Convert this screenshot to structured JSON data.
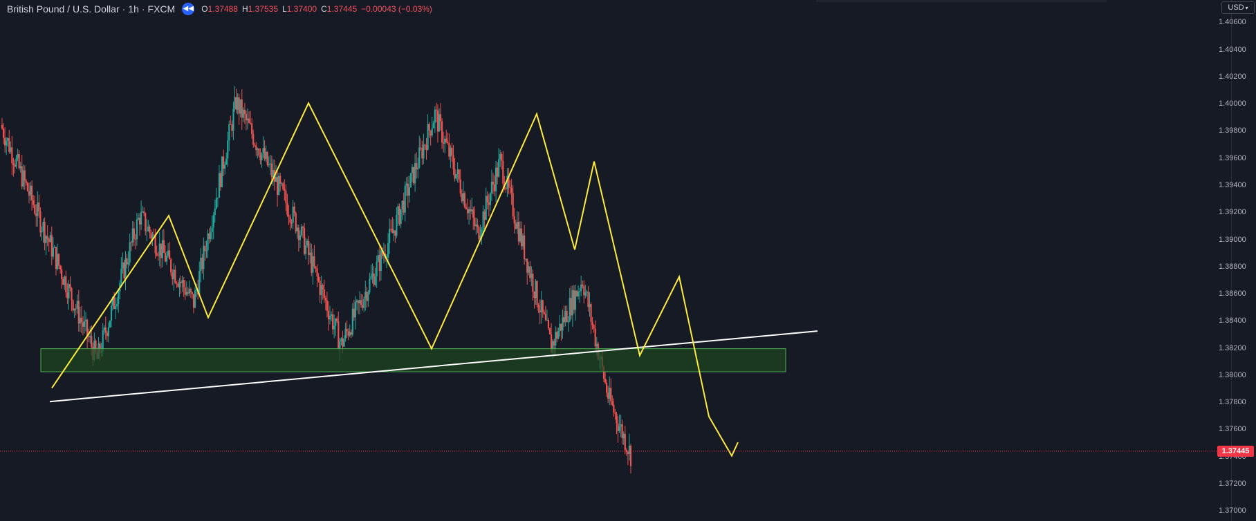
{
  "header": {
    "symbol": "British Pound / U.S. Dollar",
    "interval": "1h",
    "exchange": "FXCM",
    "open_label": "O",
    "open": "1.37488",
    "high_label": "H",
    "high": "1.37535",
    "low_label": "L",
    "low": "1.37400",
    "close_label": "C",
    "close": "1.37445",
    "change": "−0.00043 (−0.03%)"
  },
  "currency_button": "USD",
  "last_price_tag": "1.37445",
  "colors": {
    "background": "#161a25",
    "up_candle": "#26a69a",
    "down_candle": "#ef5350",
    "zigzag": "#ffeb3b",
    "trendline": "#ffffff",
    "zone_fill": "#1e4620",
    "zone_border": "#4caf50",
    "last_price": "#f23645"
  },
  "chart_data": {
    "type": "candlestick",
    "symbol": "British Pound / U.S. Dollar",
    "interval": "1h",
    "y_ticks": [
      "1.40600",
      "1.40400",
      "1.40200",
      "1.40000",
      "1.39800",
      "1.39600",
      "1.39400",
      "1.39200",
      "1.39000",
      "1.38800",
      "1.38600",
      "1.38400",
      "1.38200",
      "1.38000",
      "1.37800",
      "1.37600",
      "1.37400",
      "1.37200",
      "1.37000"
    ],
    "ylim": [
      1.3693,
      1.4077
    ],
    "last_price": 1.37445,
    "trend_segments": [
      {
        "label": "close",
        "start": 1.3985,
        "end": 1.3889
      },
      {
        "label": "close",
        "start": 1.3889,
        "end": 1.3812
      },
      {
        "label": "close",
        "start": 1.3812,
        "end": 1.3918
      },
      {
        "label": "close",
        "start": 1.3918,
        "end": 1.3854
      },
      {
        "label": "close",
        "start": 1.3854,
        "end": 1.4002
      },
      {
        "label": "close",
        "start": 1.4002,
        "end": 1.3909
      },
      {
        "label": "close",
        "start": 1.3909,
        "end": 1.3823
      },
      {
        "label": "close",
        "start": 1.3823,
        "end": 1.3905
      },
      {
        "label": "close",
        "start": 1.3905,
        "end": 1.3993
      },
      {
        "label": "close",
        "start": 1.3993,
        "end": 1.3905
      },
      {
        "label": "close",
        "start": 1.3905,
        "end": 1.3958
      },
      {
        "label": "close",
        "start": 1.3958,
        "end": 1.3865
      },
      {
        "label": "close",
        "start": 1.3865,
        "end": 1.3822
      },
      {
        "label": "close",
        "start": 1.3822,
        "end": 1.3871
      },
      {
        "label": "close",
        "start": 1.3871,
        "end": 1.3785
      },
      {
        "label": "close",
        "start": 1.3785,
        "end": 1.3742
      }
    ],
    "zigzag": [
      {
        "price": 1.3791
      },
      {
        "price": 1.3918
      },
      {
        "price": 1.3843
      },
      {
        "price": 1.4001
      },
      {
        "price": 1.382
      },
      {
        "price": 1.3993
      },
      {
        "price": 1.3893
      },
      {
        "price": 1.3958
      },
      {
        "price": 1.3815
      },
      {
        "price": 1.3873
      },
      {
        "price": 1.377
      },
      {
        "price": 1.3741
      },
      {
        "price": 1.3751
      }
    ],
    "trendline": {
      "start_price": 1.3781,
      "end_price": 1.3833
    },
    "zone": {
      "top": 1.382,
      "bottom": 1.3803
    }
  }
}
